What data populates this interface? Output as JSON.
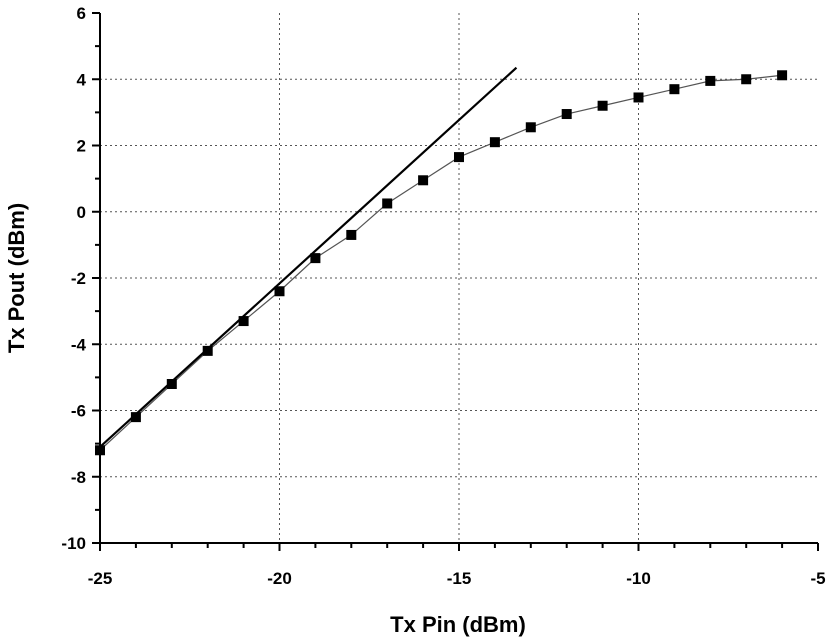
{
  "chart_data": {
    "type": "scatter",
    "title": "",
    "xlabel": "Tx Pin (dBm)",
    "ylabel": "Tx Pout (dBm)",
    "xlim": [
      -25,
      -5
    ],
    "ylim": [
      -10,
      6
    ],
    "xticks": [
      -25,
      -20,
      -15,
      -10,
      -5
    ],
    "yticks": [
      -10,
      -8,
      -6,
      -4,
      -2,
      0,
      2,
      4,
      6
    ],
    "grid": "dotted",
    "legend": "none",
    "series": [
      {
        "kind": "line-markers",
        "marker": "square",
        "color": "#000000",
        "x": [
          -25,
          -24,
          -23,
          -22,
          -21,
          -20,
          -19,
          -18,
          -17,
          -16,
          -15,
          -14,
          -13,
          -12,
          -11,
          -10,
          -9,
          -8,
          -7,
          -6
        ],
        "y": [
          -7.2,
          -6.2,
          -5.2,
          -4.2,
          -3.3,
          -2.4,
          -1.4,
          -0.7,
          0.25,
          0.95,
          1.65,
          2.1,
          2.55,
          2.95,
          3.2,
          3.45,
          3.7,
          3.95,
          4.0,
          4.12
        ]
      },
      {
        "kind": "line",
        "color": "#000000",
        "x": [
          -25,
          -13.4
        ],
        "y": [
          -7.1,
          4.35
        ]
      }
    ]
  }
}
